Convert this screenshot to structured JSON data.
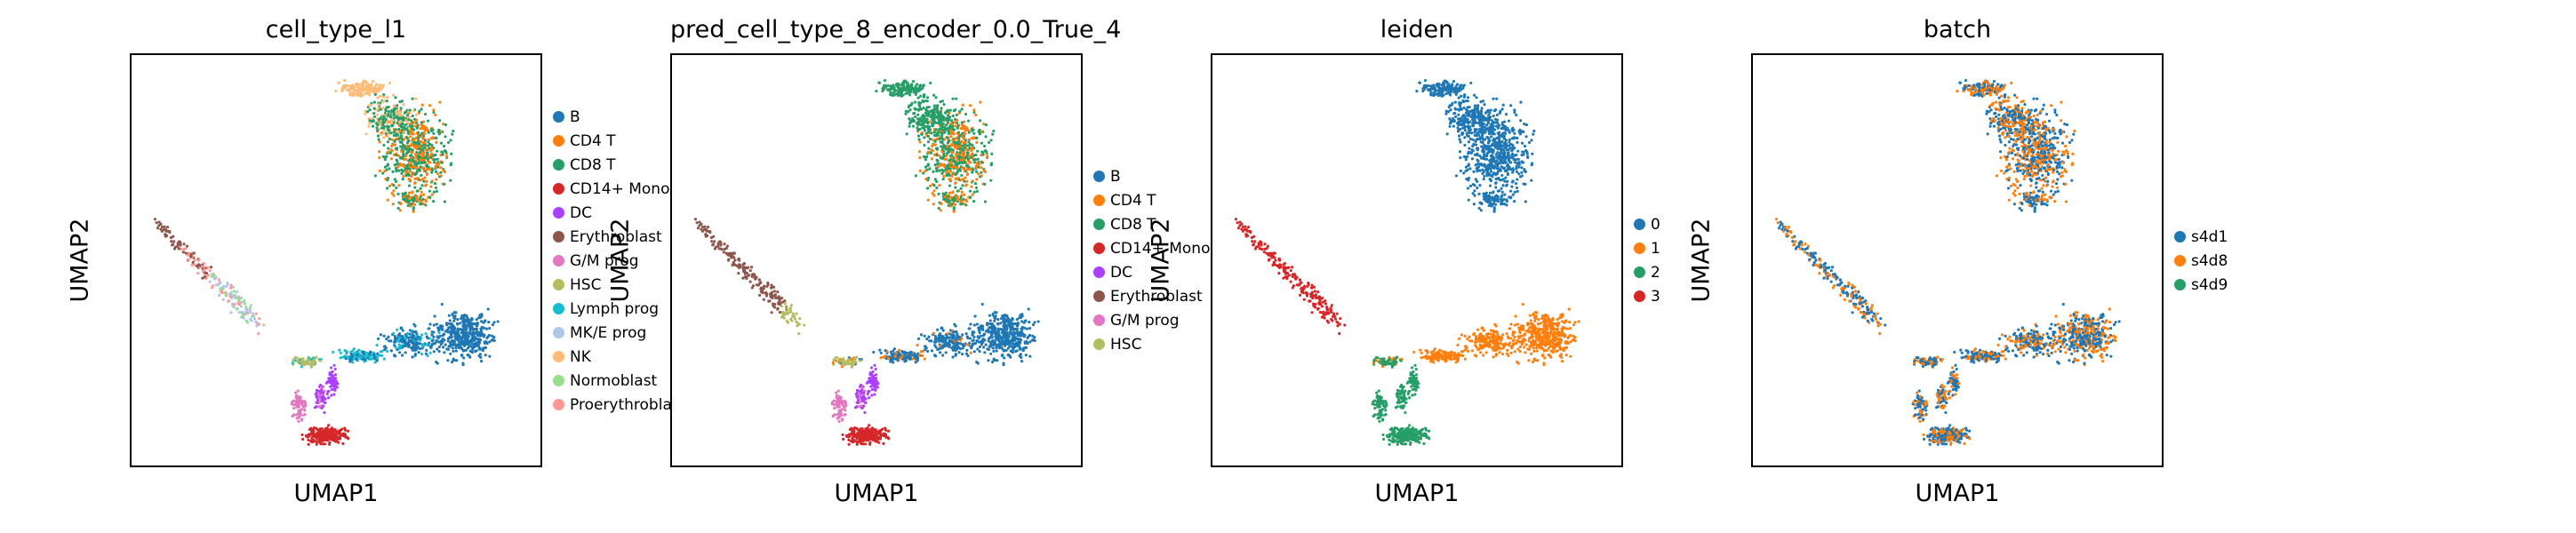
{
  "figure": {
    "xlabel": "UMAP1",
    "ylabel": "UMAP2"
  },
  "chart_data": [
    {
      "type": "scatter",
      "title": "cell_type_l1",
      "xlabel": "UMAP1",
      "ylabel": "UMAP2",
      "legend_position": "right",
      "legend": [
        {
          "label": "B",
          "color": "#1f77b4"
        },
        {
          "label": "CD4 T",
          "color": "#ff7f0e"
        },
        {
          "label": "CD8 T",
          "color": "#279e68"
        },
        {
          "label": "CD14+ Mono",
          "color": "#d62728"
        },
        {
          "label": "DC",
          "color": "#aa40fc"
        },
        {
          "label": "Erythroblast",
          "color": "#8c564b"
        },
        {
          "label": "G/M prog",
          "color": "#e377c2"
        },
        {
          "label": "HSC",
          "color": "#b5bd61"
        },
        {
          "label": "Lymph prog",
          "color": "#17becf"
        },
        {
          "label": "MK/E prog",
          "color": "#aec7e8"
        },
        {
          "label": "NK",
          "color": "#ffbb78"
        },
        {
          "label": "Normoblast",
          "color": "#98df8a"
        },
        {
          "label": "Proerythroblast",
          "color": "#ff9896"
        }
      ]
    },
    {
      "type": "scatter",
      "title": "pred_cell_type_8_encoder_0.0_True_4",
      "xlabel": "UMAP1",
      "ylabel": "UMAP2",
      "legend_position": "right",
      "legend": [
        {
          "label": "B",
          "color": "#1f77b4"
        },
        {
          "label": "CD4 T",
          "color": "#ff7f0e"
        },
        {
          "label": "CD8 T",
          "color": "#279e68"
        },
        {
          "label": "CD14+ Mono",
          "color": "#d62728"
        },
        {
          "label": "DC",
          "color": "#aa40fc"
        },
        {
          "label": "Erythroblast",
          "color": "#8c564b"
        },
        {
          "label": "G/M prog",
          "color": "#e377c2"
        },
        {
          "label": "HSC",
          "color": "#b5bd61"
        }
      ]
    },
    {
      "type": "scatter",
      "title": "leiden",
      "xlabel": "UMAP1",
      "ylabel": "UMAP2",
      "legend_position": "right",
      "legend": [
        {
          "label": "0",
          "color": "#1f77b4"
        },
        {
          "label": "1",
          "color": "#ff7f0e"
        },
        {
          "label": "2",
          "color": "#279e68"
        },
        {
          "label": "3",
          "color": "#d62728"
        }
      ]
    },
    {
      "type": "scatter",
      "title": "batch",
      "xlabel": "UMAP1",
      "ylabel": "UMAP2",
      "legend_position": "right",
      "legend": [
        {
          "label": "s4d1",
          "color": "#1f77b4"
        },
        {
          "label": "s4d8",
          "color": "#ff7f0e"
        },
        {
          "label": "s4d9",
          "color": "#279e68"
        }
      ]
    }
  ]
}
